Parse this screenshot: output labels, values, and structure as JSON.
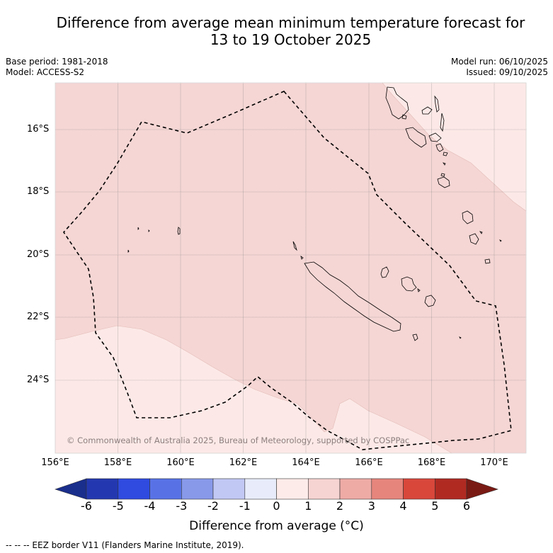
{
  "title": {
    "line1": "Difference from average mean minimum temperature forecast for",
    "line2": "13 to 19 October 2025"
  },
  "meta": {
    "base_period": "Base period: 1981-2018",
    "model": "Model: ACCESS-S2",
    "model_run": "Model run: 06/10/2025",
    "issued": "Issued: 09/10/2025"
  },
  "map": {
    "latitude_labels": [
      "16°S",
      "18°S",
      "20°S",
      "22°S",
      "24°S"
    ],
    "longitude_labels": [
      "156°E",
      "158°E",
      "160°E",
      "162°E",
      "164°E",
      "166°E",
      "168°E",
      "170°E"
    ],
    "copyright": "© Commonwealth of Australia 2025, Bureau of Meteorology, supported by COSPPac",
    "anomaly_colors": {
      "zero_to_one": "#fce9e7",
      "one_to_two": "#f5d6d4"
    }
  },
  "colorbar": {
    "label": "Difference from average (°C)",
    "ticks": [
      "-6",
      "-5",
      "-4",
      "-3",
      "-2",
      "-1",
      "0",
      "1",
      "2",
      "3",
      "4",
      "5",
      "6"
    ],
    "colors": [
      "#1a2e8c",
      "#2338b0",
      "#2f4be0",
      "#5872e6",
      "#8899ea",
      "#c2c8f4",
      "#e8ecfa",
      "#fdebe9",
      "#f6d4d2",
      "#eeaba6",
      "#e6857c",
      "#d9473b",
      "#b02a22",
      "#7a1a14"
    ]
  },
  "footnote": "--  --  -- EEZ border V11 (Flanders Marine Institute, 2019)."
}
